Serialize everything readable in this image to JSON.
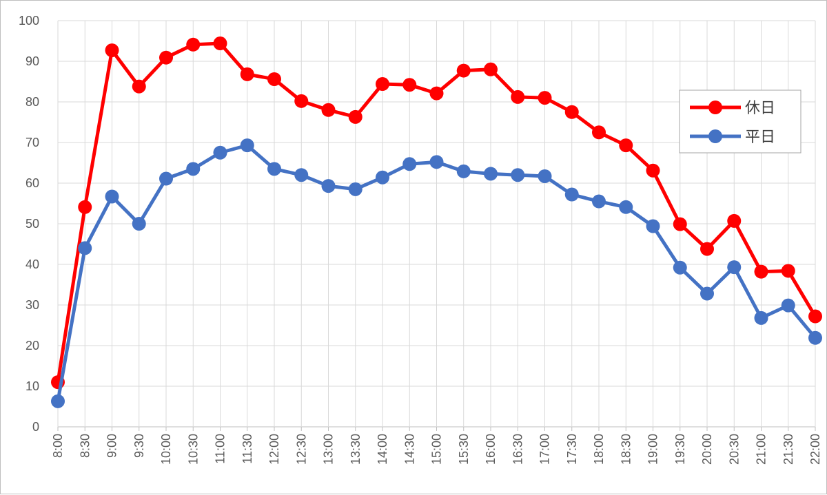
{
  "chart_data": {
    "type": "line",
    "title": "",
    "xlabel": "",
    "ylabel": "",
    "categories": [
      "8:00",
      "8:30",
      "9:00",
      "9:30",
      "10:00",
      "10:30",
      "11:00",
      "11:30",
      "12:00",
      "12:30",
      "13:00",
      "13:30",
      "14:00",
      "14:30",
      "15:00",
      "15:30",
      "16:00",
      "16:30",
      "17:00",
      "17:30",
      "18:00",
      "18:30",
      "19:00",
      "19:30",
      "20:00",
      "20:30",
      "21:00",
      "21:30",
      "22:00"
    ],
    "ylim": [
      0,
      100
    ],
    "yticks": [
      0,
      10,
      20,
      30,
      40,
      50,
      60,
      70,
      80,
      90,
      100
    ],
    "grid": true,
    "legend": "right",
    "series": [
      {
        "name": "休日",
        "color": "#ff0000",
        "values": [
          11.0,
          54.1,
          92.7,
          83.8,
          90.9,
          94.1,
          94.4,
          86.8,
          85.6,
          80.2,
          78.0,
          76.3,
          84.4,
          84.2,
          82.1,
          87.7,
          88.0,
          81.2,
          81.0,
          77.5,
          72.5,
          69.3,
          63.1,
          49.9,
          43.8,
          50.7,
          38.2,
          38.4,
          27.2
        ]
      },
      {
        "name": "平日",
        "color": "#4472c4",
        "values": [
          6.3,
          44.0,
          56.7,
          50.0,
          61.1,
          63.5,
          67.5,
          69.3,
          63.5,
          62.0,
          59.3,
          58.5,
          61.4,
          64.7,
          65.2,
          62.9,
          62.3,
          62.0,
          61.7,
          57.2,
          55.5,
          54.1,
          49.4,
          39.2,
          32.8,
          39.3,
          26.8,
          29.9,
          21.9
        ]
      }
    ]
  }
}
